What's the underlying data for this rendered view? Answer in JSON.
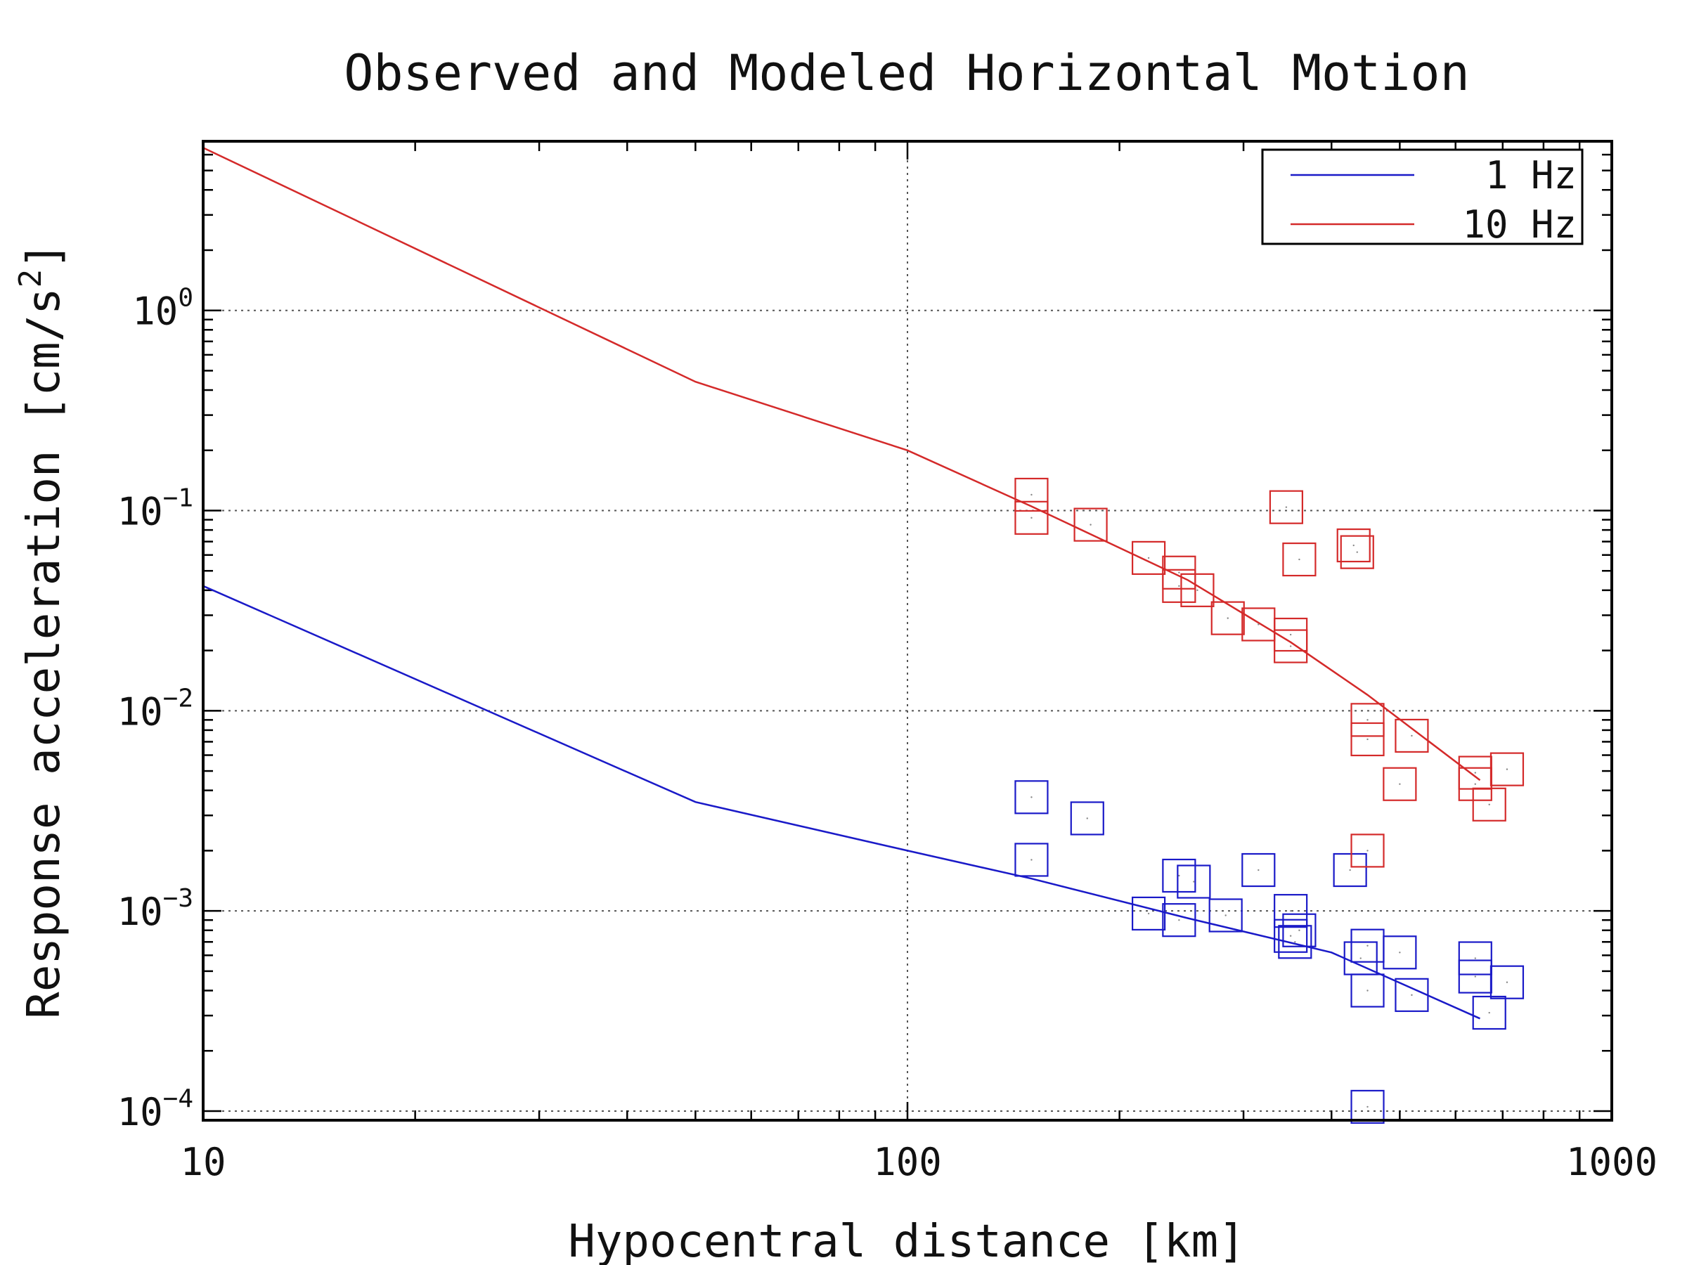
{
  "chart_data": {
    "type": "scatter",
    "title": "Observed and Modeled Horizontal Motion",
    "xlabel": "Hypocentral distance [km]",
    "ylabel": "Response acceleration [cm/s²]",
    "xscale": "log",
    "yscale": "log",
    "xlim": [
      10,
      1000
    ],
    "ylim": [
      9e-05,
      7
    ],
    "x_ticks": [
      {
        "value": 10,
        "label": "10"
      },
      {
        "value": 100,
        "label": "100"
      },
      {
        "value": 1000,
        "label": "1000"
      }
    ],
    "y_ticks": [
      {
        "value": 0.0001,
        "base": "10",
        "exp": "−4"
      },
      {
        "value": 0.001,
        "base": "10",
        "exp": "−3"
      },
      {
        "value": 0.01,
        "base": "10",
        "exp": "−2"
      },
      {
        "value": 0.1,
        "base": "10",
        "exp": "−1"
      },
      {
        "value": 1,
        "base": "10",
        "exp": "0"
      }
    ],
    "grid": true,
    "legend_position": "top-right",
    "series": [
      {
        "name": "1 Hz",
        "color": "#1a1ac8",
        "model": [
          [
            10,
            0.042
          ],
          [
            50,
            0.0035
          ],
          [
            100,
            0.002
          ],
          [
            150,
            0.00145
          ],
          [
            250,
            0.00092
          ],
          [
            400,
            0.00062
          ],
          [
            650,
            0.00029
          ]
        ],
        "observed": [
          [
            150,
            0.0037
          ],
          [
            150,
            0.0018
          ],
          [
            180,
            0.0029
          ],
          [
            220,
            0.00097
          ],
          [
            243,
            0.0015
          ],
          [
            243,
            0.0009
          ],
          [
            255,
            0.0014
          ],
          [
            283,
            0.00095
          ],
          [
            315,
            0.0016
          ],
          [
            350,
            0.001
          ],
          [
            350,
            0.00075
          ],
          [
            355,
            0.0007
          ],
          [
            360,
            0.0008
          ],
          [
            425,
            0.0016
          ],
          [
            440,
            0.00058
          ],
          [
            450,
            0.00067
          ],
          [
            450,
            0.0004
          ],
          [
            450,
            0.000105
          ],
          [
            500,
            0.00062
          ],
          [
            520,
            0.00038
          ],
          [
            640,
            0.00058
          ],
          [
            640,
            0.00047
          ],
          [
            670,
            0.00031
          ],
          [
            710,
            0.00044
          ]
        ]
      },
      {
        "name": "10 Hz",
        "color": "#d42a2a",
        "model": [
          [
            10,
            6.5
          ],
          [
            50,
            0.44
          ],
          [
            100,
            0.2
          ],
          [
            150,
            0.105
          ],
          [
            250,
            0.045
          ],
          [
            350,
            0.022
          ],
          [
            450,
            0.012
          ],
          [
            650,
            0.0045
          ]
        ],
        "observed": [
          [
            150,
            0.12
          ],
          [
            150,
            0.092
          ],
          [
            182,
            0.085
          ],
          [
            220,
            0.058
          ],
          [
            243,
            0.049
          ],
          [
            243,
            0.042
          ],
          [
            258,
            0.04
          ],
          [
            285,
            0.029
          ],
          [
            315,
            0.027
          ],
          [
            350,
            0.024
          ],
          [
            350,
            0.021
          ],
          [
            345,
            0.104
          ],
          [
            360,
            0.057
          ],
          [
            430,
            0.067
          ],
          [
            435,
            0.062
          ],
          [
            450,
            0.009
          ],
          [
            450,
            0.0072
          ],
          [
            450,
            0.002
          ],
          [
            500,
            0.0043
          ],
          [
            520,
            0.0075
          ],
          [
            640,
            0.0049
          ],
          [
            640,
            0.0043
          ],
          [
            670,
            0.0034
          ],
          [
            710,
            0.0051
          ]
        ]
      }
    ]
  }
}
